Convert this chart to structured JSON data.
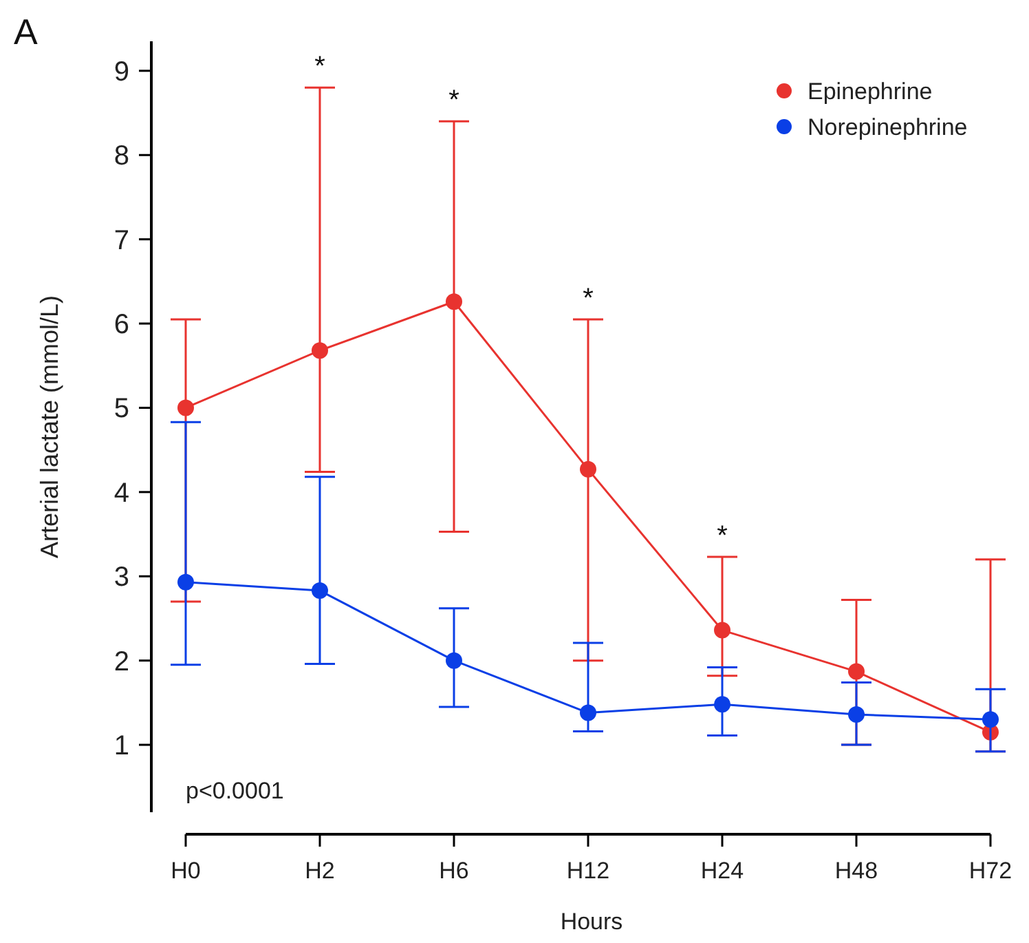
{
  "chart_data": {
    "type": "line",
    "xlabel": "Hours",
    "ylabel": "Arterial lactate (mmol/L)",
    "categories": [
      "H0",
      "H2",
      "H6",
      "H12",
      "H24",
      "H48",
      "H72"
    ],
    "series": [
      {
        "name": "Epinephrine",
        "color": "#e8332f",
        "values": [
          5.0,
          5.68,
          6.26,
          4.27,
          2.36,
          1.87,
          1.15
        ],
        "errors": [
          [
            2.7,
            6.05
          ],
          [
            4.24,
            8.8
          ],
          [
            3.53,
            8.4
          ],
          [
            2.0,
            6.05
          ],
          [
            1.82,
            3.23
          ],
          [
            1.0,
            2.72
          ],
          [
            0.92,
            3.2
          ]
        ]
      },
      {
        "name": "Norepinephrine",
        "color": "#0a3fe6",
        "values": [
          2.93,
          2.83,
          2.0,
          1.38,
          1.48,
          1.36,
          1.3
        ],
        "errors": [
          [
            1.95,
            4.83
          ],
          [
            1.96,
            4.18
          ],
          [
            1.45,
            2.62
          ],
          [
            1.16,
            2.21
          ],
          [
            1.11,
            1.92
          ],
          [
            1.0,
            1.74
          ],
          [
            0.92,
            1.66
          ]
        ]
      }
    ],
    "ylim": [
      0.2,
      9.35
    ],
    "yticks": [
      1,
      2,
      3,
      4,
      5,
      6,
      7,
      8,
      9
    ],
    "marker": "circle",
    "legend": "top right",
    "grid": false,
    "annotations": [
      "A",
      "p<0.0001",
      {
        "text": "*",
        "x": "H2",
        "y": 8.8
      },
      {
        "text": "*",
        "x": "H6",
        "y": 8.4
      },
      {
        "text": "*",
        "x": "H12",
        "y": 6.05
      },
      {
        "text": "*",
        "x": "H24",
        "y": 3.23
      }
    ]
  }
}
